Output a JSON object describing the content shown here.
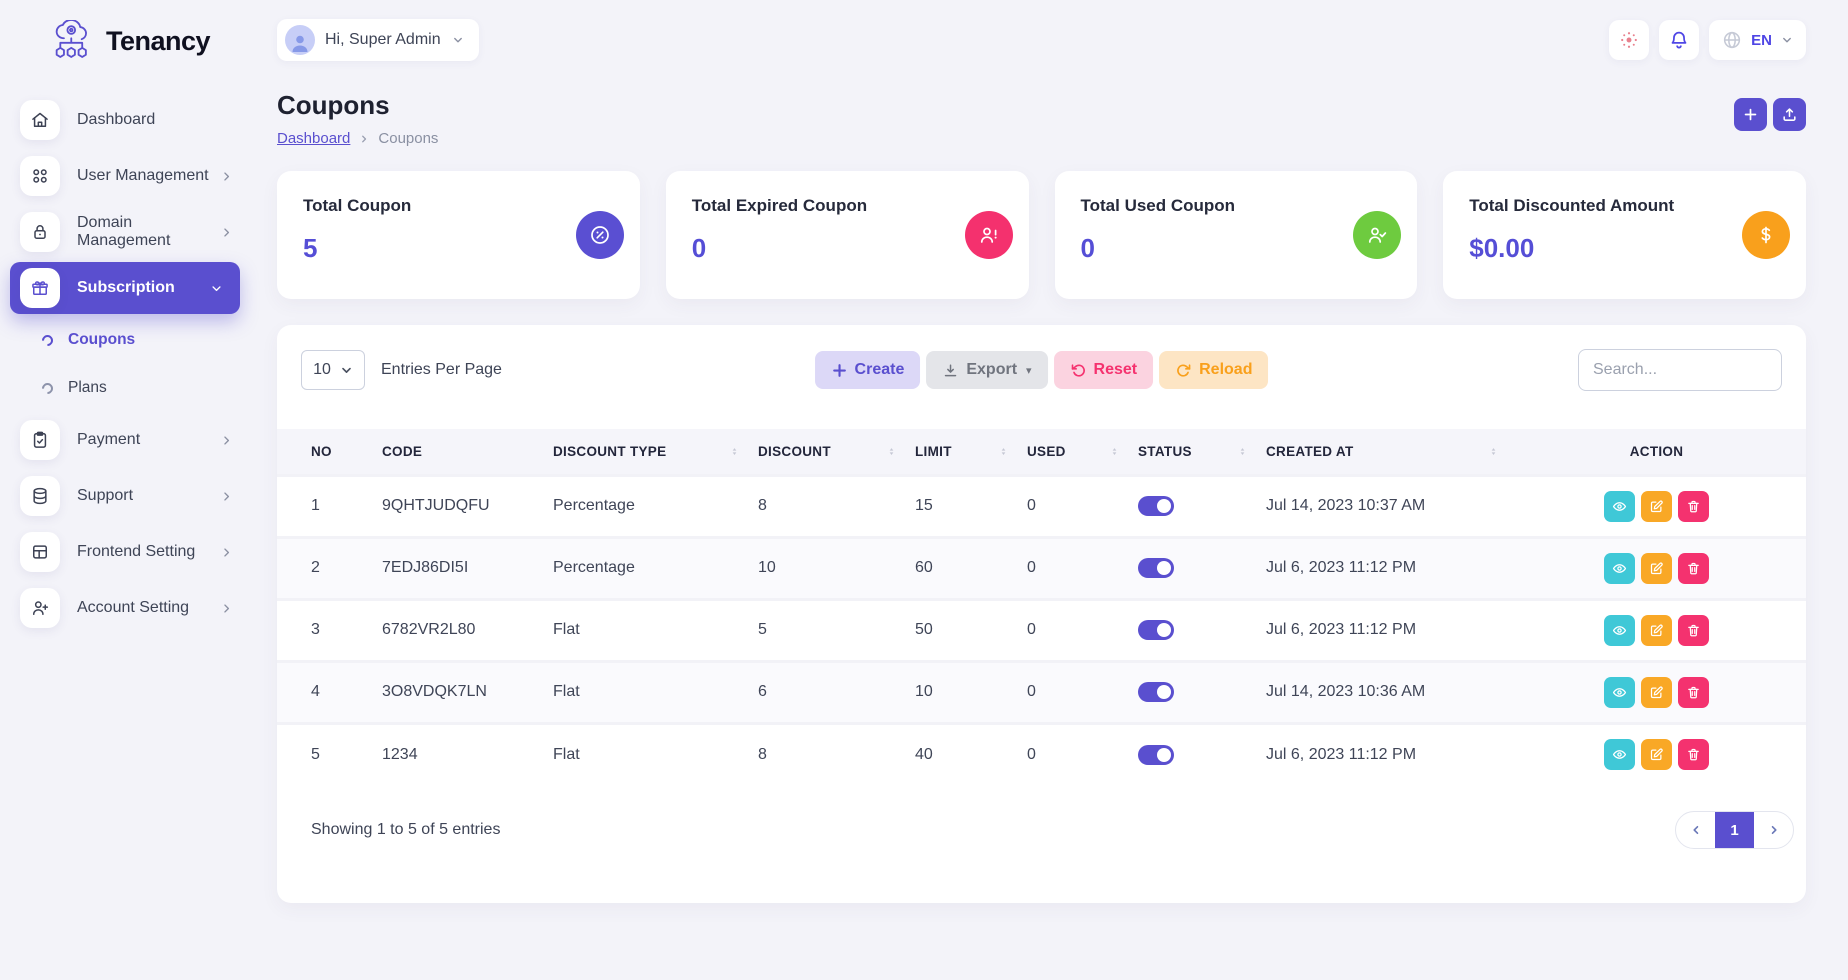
{
  "brand": {
    "name": "Tenancy"
  },
  "topbar": {
    "greeting": "Hi, Super Admin",
    "language": "EN"
  },
  "sidebar": {
    "items": [
      {
        "label": "Dashboard",
        "icon": "home-icon"
      },
      {
        "label": "User Management",
        "icon": "grid-icon",
        "chevron": "right"
      },
      {
        "label": "Domain Management",
        "icon": "lock-icon",
        "chevron": "right"
      },
      {
        "label": "Subscription",
        "icon": "gift-icon",
        "chevron": "down",
        "active": true,
        "children": [
          {
            "label": "Coupons",
            "active": true
          },
          {
            "label": "Plans",
            "active": false
          }
        ]
      },
      {
        "label": "Payment",
        "icon": "clipboard-icon",
        "chevron": "right"
      },
      {
        "label": "Support",
        "icon": "database-icon",
        "chevron": "right"
      },
      {
        "label": "Frontend Setting",
        "icon": "layout-icon",
        "chevron": "right"
      },
      {
        "label": "Account Setting",
        "icon": "user-plus-icon",
        "chevron": "right"
      }
    ]
  },
  "page": {
    "title": "Coupons",
    "breadcrumb_home": "Dashboard",
    "breadcrumb_current": "Coupons"
  },
  "stats": [
    {
      "title": "Total Coupon",
      "value": "5",
      "icon": "percent-icon",
      "color": "#5a4fd2"
    },
    {
      "title": "Total Expired Coupon",
      "value": "0",
      "icon": "user-alert-icon",
      "color": "#f4316e"
    },
    {
      "title": "Total Used Coupon",
      "value": "0",
      "icon": "user-check-icon",
      "color": "#6ecb3f"
    },
    {
      "title": "Total Discounted Amount",
      "value": "$0.00",
      "icon": "dollar-icon",
      "color": "#f9a01c"
    }
  ],
  "toolbar": {
    "entries_value": "10",
    "entries_label": "Entries Per Page",
    "create_label": "Create",
    "export_label": "Export",
    "reset_label": "Reset",
    "reload_label": "Reload",
    "search_placeholder": "Search..."
  },
  "table": {
    "columns": [
      {
        "label": "NO",
        "sortable": false
      },
      {
        "label": "CODE",
        "sortable": false
      },
      {
        "label": "DISCOUNT TYPE",
        "sortable": true
      },
      {
        "label": "DISCOUNT",
        "sortable": true
      },
      {
        "label": "LIMIT",
        "sortable": true
      },
      {
        "label": "USED",
        "sortable": true
      },
      {
        "label": "STATUS",
        "sortable": true
      },
      {
        "label": "CREATED AT",
        "sortable": true
      },
      {
        "label": "ACTION",
        "sortable": false
      }
    ],
    "rows": [
      {
        "no": "1",
        "code": "9QHTJUDQFU",
        "type": "Percentage",
        "discount": "8",
        "limit": "15",
        "used": "0",
        "status": true,
        "created": "Jul 14, 2023 10:37 AM"
      },
      {
        "no": "2",
        "code": "7EDJ86DI5I",
        "type": "Percentage",
        "discount": "10",
        "limit": "60",
        "used": "0",
        "status": true,
        "created": "Jul 6, 2023 11:12 PM"
      },
      {
        "no": "3",
        "code": "6782VR2L80",
        "type": "Flat",
        "discount": "5",
        "limit": "50",
        "used": "0",
        "status": true,
        "created": "Jul 6, 2023 11:12 PM"
      },
      {
        "no": "4",
        "code": "3O8VDQK7LN",
        "type": "Flat",
        "discount": "6",
        "limit": "10",
        "used": "0",
        "status": true,
        "created": "Jul 14, 2023 10:36 AM"
      },
      {
        "no": "5",
        "code": "1234",
        "type": "Flat",
        "discount": "8",
        "limit": "40",
        "used": "0",
        "status": true,
        "created": "Jul 6, 2023 11:12 PM"
      }
    ],
    "footer_text": "Showing 1 to 5 of 5 entries",
    "page_number": "1"
  }
}
